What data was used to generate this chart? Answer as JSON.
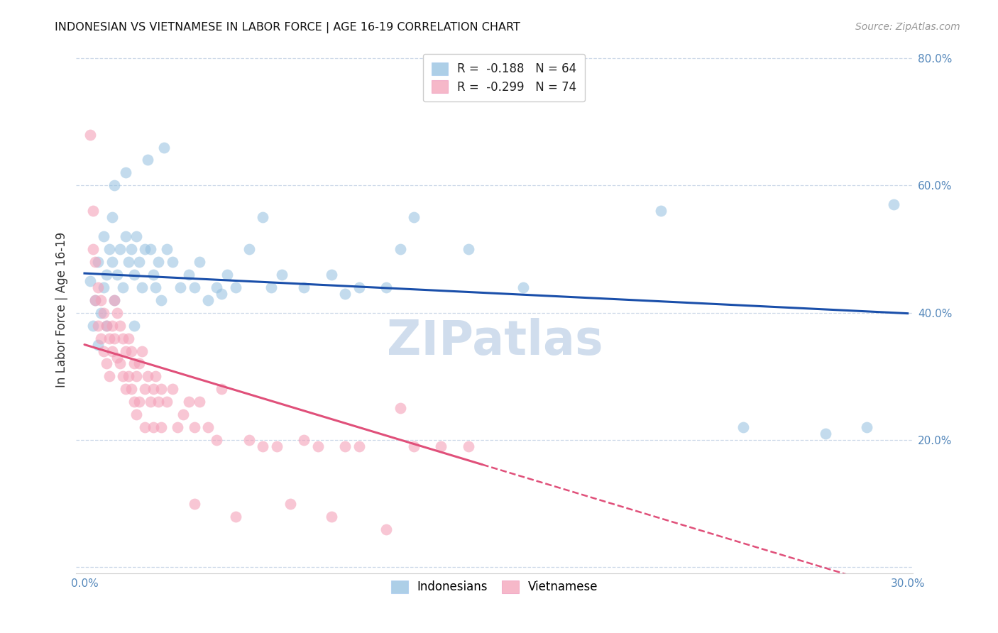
{
  "title": "INDONESIAN VS VIETNAMESE IN LABOR FORCE | AGE 16-19 CORRELATION CHART",
  "source": "Source: ZipAtlas.com",
  "ylabel": "In Labor Force | Age 16-19",
  "xlim": [
    -0.003,
    0.302
  ],
  "ylim": [
    -0.01,
    0.82
  ],
  "xticks": [
    0.0,
    0.05,
    0.1,
    0.15,
    0.2,
    0.25,
    0.3
  ],
  "yticks": [
    0.0,
    0.2,
    0.4,
    0.6,
    0.8
  ],
  "xticklabels": [
    "0.0%",
    "",
    "",
    "",
    "",
    "",
    "30.0%"
  ],
  "yticklabels": [
    "",
    "20.0%",
    "40.0%",
    "60.0%",
    "80.0%"
  ],
  "indonesian_color": "#92bfdf",
  "vietnamese_color": "#f4a0b8",
  "trendline_indo_color": "#1a4faa",
  "trendline_viet_color": "#e0507a",
  "indo_R": -0.188,
  "indo_N": 64,
  "viet_R": -0.299,
  "viet_N": 74,
  "background_color": "#ffffff",
  "grid_color": "#ccd8e8",
  "watermark": "ZIPatlas",
  "indo_intercept": 0.462,
  "indo_slope": -0.21,
  "viet_intercept": 0.35,
  "viet_slope": -1.3,
  "indonesian_scatter": [
    [
      0.002,
      0.45
    ],
    [
      0.003,
      0.38
    ],
    [
      0.004,
      0.42
    ],
    [
      0.005,
      0.35
    ],
    [
      0.005,
      0.48
    ],
    [
      0.006,
      0.4
    ],
    [
      0.007,
      0.44
    ],
    [
      0.007,
      0.52
    ],
    [
      0.008,
      0.46
    ],
    [
      0.008,
      0.38
    ],
    [
      0.009,
      0.5
    ],
    [
      0.01,
      0.48
    ],
    [
      0.01,
      0.55
    ],
    [
      0.011,
      0.42
    ],
    [
      0.011,
      0.6
    ],
    [
      0.012,
      0.46
    ],
    [
      0.013,
      0.5
    ],
    [
      0.014,
      0.44
    ],
    [
      0.015,
      0.52
    ],
    [
      0.015,
      0.62
    ],
    [
      0.016,
      0.48
    ],
    [
      0.017,
      0.5
    ],
    [
      0.018,
      0.46
    ],
    [
      0.018,
      0.38
    ],
    [
      0.019,
      0.52
    ],
    [
      0.02,
      0.48
    ],
    [
      0.021,
      0.44
    ],
    [
      0.022,
      0.5
    ],
    [
      0.023,
      0.64
    ],
    [
      0.024,
      0.5
    ],
    [
      0.025,
      0.46
    ],
    [
      0.026,
      0.44
    ],
    [
      0.027,
      0.48
    ],
    [
      0.028,
      0.42
    ],
    [
      0.029,
      0.66
    ],
    [
      0.03,
      0.5
    ],
    [
      0.032,
      0.48
    ],
    [
      0.035,
      0.44
    ],
    [
      0.038,
      0.46
    ],
    [
      0.04,
      0.44
    ],
    [
      0.042,
      0.48
    ],
    [
      0.045,
      0.42
    ],
    [
      0.048,
      0.44
    ],
    [
      0.05,
      0.43
    ],
    [
      0.052,
      0.46
    ],
    [
      0.055,
      0.44
    ],
    [
      0.06,
      0.5
    ],
    [
      0.065,
      0.55
    ],
    [
      0.068,
      0.44
    ],
    [
      0.072,
      0.46
    ],
    [
      0.08,
      0.44
    ],
    [
      0.09,
      0.46
    ],
    [
      0.095,
      0.43
    ],
    [
      0.1,
      0.44
    ],
    [
      0.11,
      0.44
    ],
    [
      0.115,
      0.5
    ],
    [
      0.12,
      0.55
    ],
    [
      0.14,
      0.5
    ],
    [
      0.16,
      0.44
    ],
    [
      0.21,
      0.56
    ],
    [
      0.24,
      0.22
    ],
    [
      0.27,
      0.21
    ],
    [
      0.285,
      0.22
    ],
    [
      0.295,
      0.57
    ]
  ],
  "vietnamese_scatter": [
    [
      0.002,
      0.68
    ],
    [
      0.003,
      0.56
    ],
    [
      0.003,
      0.5
    ],
    [
      0.004,
      0.42
    ],
    [
      0.004,
      0.48
    ],
    [
      0.005,
      0.38
    ],
    [
      0.005,
      0.44
    ],
    [
      0.006,
      0.42
    ],
    [
      0.006,
      0.36
    ],
    [
      0.007,
      0.4
    ],
    [
      0.007,
      0.34
    ],
    [
      0.008,
      0.38
    ],
    [
      0.008,
      0.32
    ],
    [
      0.009,
      0.36
    ],
    [
      0.009,
      0.3
    ],
    [
      0.01,
      0.38
    ],
    [
      0.01,
      0.34
    ],
    [
      0.011,
      0.42
    ],
    [
      0.011,
      0.36
    ],
    [
      0.012,
      0.4
    ],
    [
      0.012,
      0.33
    ],
    [
      0.013,
      0.38
    ],
    [
      0.013,
      0.32
    ],
    [
      0.014,
      0.36
    ],
    [
      0.014,
      0.3
    ],
    [
      0.015,
      0.34
    ],
    [
      0.015,
      0.28
    ],
    [
      0.016,
      0.36
    ],
    [
      0.016,
      0.3
    ],
    [
      0.017,
      0.34
    ],
    [
      0.017,
      0.28
    ],
    [
      0.018,
      0.32
    ],
    [
      0.018,
      0.26
    ],
    [
      0.019,
      0.3
    ],
    [
      0.019,
      0.24
    ],
    [
      0.02,
      0.32
    ],
    [
      0.02,
      0.26
    ],
    [
      0.021,
      0.34
    ],
    [
      0.022,
      0.28
    ],
    [
      0.022,
      0.22
    ],
    [
      0.023,
      0.3
    ],
    [
      0.024,
      0.26
    ],
    [
      0.025,
      0.28
    ],
    [
      0.025,
      0.22
    ],
    [
      0.026,
      0.3
    ],
    [
      0.027,
      0.26
    ],
    [
      0.028,
      0.28
    ],
    [
      0.028,
      0.22
    ],
    [
      0.03,
      0.26
    ],
    [
      0.032,
      0.28
    ],
    [
      0.034,
      0.22
    ],
    [
      0.036,
      0.24
    ],
    [
      0.038,
      0.26
    ],
    [
      0.04,
      0.22
    ],
    [
      0.04,
      0.1
    ],
    [
      0.042,
      0.26
    ],
    [
      0.045,
      0.22
    ],
    [
      0.048,
      0.2
    ],
    [
      0.05,
      0.28
    ],
    [
      0.055,
      0.08
    ],
    [
      0.06,
      0.2
    ],
    [
      0.065,
      0.19
    ],
    [
      0.07,
      0.19
    ],
    [
      0.075,
      0.1
    ],
    [
      0.08,
      0.2
    ],
    [
      0.085,
      0.19
    ],
    [
      0.09,
      0.08
    ],
    [
      0.095,
      0.19
    ],
    [
      0.1,
      0.19
    ],
    [
      0.11,
      0.06
    ],
    [
      0.115,
      0.25
    ],
    [
      0.12,
      0.19
    ],
    [
      0.13,
      0.19
    ],
    [
      0.14,
      0.19
    ]
  ]
}
